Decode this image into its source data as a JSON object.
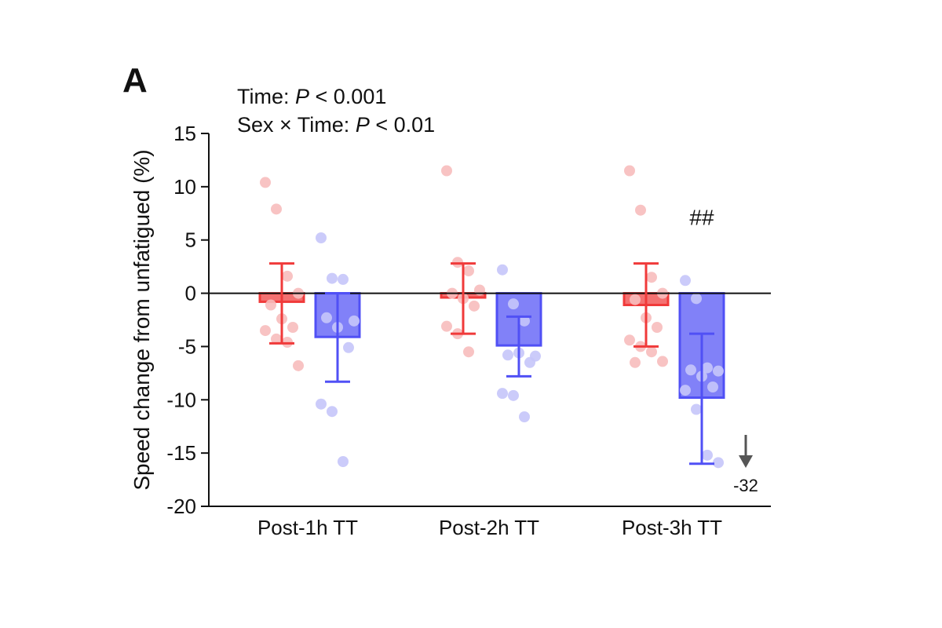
{
  "panel_label": "A",
  "stats": [
    {
      "prefix": "Time: ",
      "p": "P",
      "suffix": " < 0.001"
    },
    {
      "prefix": "Sex × Time: ",
      "p": "P",
      "suffix": " < 0.01"
    }
  ],
  "chart_data": {
    "type": "bar",
    "ylabel": "Speed change from unfatigued (%)",
    "ylim": [
      -20,
      15
    ],
    "yticks": [
      15,
      10,
      5,
      0,
      -5,
      -10,
      -15,
      -20
    ],
    "categories": [
      "Post-1h TT",
      "Post-2h TT",
      "Post-3h TT"
    ],
    "series": [
      {
        "color": "#f03a3a",
        "point_color": "#f7bcbc",
        "means": [
          -0.8,
          -0.4,
          -1.1
        ],
        "error_low": [
          -4.7,
          -3.8,
          -5.0
        ],
        "error_high": [
          2.8,
          2.8,
          2.8
        ],
        "points": [
          [
            10.4,
            7.9,
            1.6,
            0.0,
            -1.1,
            -2.4,
            -3.2,
            -3.5,
            -4.3,
            -4.6,
            -6.8
          ],
          [
            11.5,
            2.9,
            2.1,
            0.3,
            0.0,
            -0.5,
            -1.2,
            -3.1,
            -3.8,
            -5.5
          ],
          [
            11.5,
            7.8,
            1.5,
            0.0,
            -0.6,
            -2.3,
            -3.2,
            -4.4,
            -5.0,
            -5.5,
            -6.4,
            -6.5
          ]
        ]
      },
      {
        "color": "#5050f5",
        "point_color": "#c5c5fa",
        "means": [
          -4.1,
          -4.9,
          -9.8
        ],
        "error_low": [
          -8.3,
          -7.8,
          -16.0
        ],
        "error_high": [
          0.0,
          -2.2,
          -3.8
        ],
        "points": [
          [
            5.2,
            1.4,
            1.3,
            -2.6,
            -2.3,
            -3.2,
            -5.1,
            -10.4,
            -11.1,
            -15.8
          ],
          [
            2.2,
            -1.0,
            -2.6,
            -5.9,
            -5.8,
            -5.6,
            -6.5,
            -9.4,
            -9.6,
            -11.6
          ],
          [
            1.2,
            -0.5,
            -7.0,
            -7.3,
            -7.2,
            -7.8,
            -8.8,
            -9.1,
            -10.9,
            -15.2,
            -15.9
          ]
        ]
      }
    ],
    "annotations": {
      "significance": "##",
      "significance_category": 2,
      "significance_value": 7.3,
      "offscale_label": "-32"
    }
  }
}
